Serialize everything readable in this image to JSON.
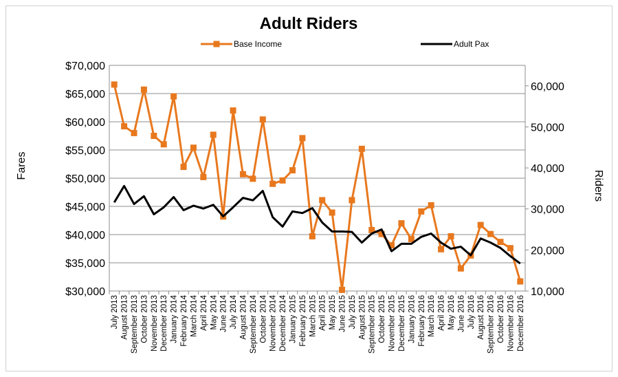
{
  "chart_data": {
    "type": "line",
    "title": "Adult Riders",
    "y_label": "Fares",
    "y2_label": "Riders",
    "categories": [
      "July 2013",
      "August 2013",
      "September 2013",
      "October 2013",
      "November 2013",
      "December 2013",
      "January 2014",
      "February 2014",
      "March 2014",
      "April 2014",
      "May 2014",
      "June 2014",
      "July 2014",
      "August 2014",
      "September 2014",
      "October 2014",
      "November 2014",
      "December 2014",
      "January 2015",
      "February 2015",
      "March 2015",
      "April 2015",
      "May 2015",
      "June 2015",
      "July 2015",
      "August 2015",
      "September 2015",
      "October 2015",
      "November 2015",
      "December 2015",
      "January 2016",
      "February 2016",
      "March 2016",
      "April 2016",
      "May 2016",
      "June 2016",
      "July 2016",
      "August 2016",
      "September 2016",
      "October 2016",
      "November 2016",
      "December 2016"
    ],
    "series": [
      {
        "name": "Base Income",
        "color": "#e8781e",
        "marker": "square",
        "axis": "y",
        "values": [
          66600,
          59200,
          58000,
          65700,
          57500,
          56000,
          64500,
          52000,
          55400,
          50200,
          57700,
          43200,
          62000,
          50700,
          49900,
          60400,
          49000,
          49600,
          51400,
          57100,
          39700,
          46100,
          43900,
          30200,
          46100,
          55200,
          40800,
          40100,
          38100,
          42000,
          39200,
          44100,
          45200,
          37400,
          39700,
          34000,
          36300,
          41700,
          40100,
          38700,
          37600,
          31700
        ]
      },
      {
        "name": "Adult Pax",
        "color": "#000000",
        "axis": "y2",
        "values": [
          31600,
          35600,
          31200,
          33100,
          28700,
          30400,
          32900,
          29700,
          30800,
          30100,
          31000,
          28200,
          30400,
          32700,
          32100,
          34400,
          28000,
          25700,
          29400,
          29000,
          30200,
          26700,
          24500,
          24500,
          24400,
          21800,
          24000,
          25000,
          19700,
          21500,
          21500,
          23200,
          24000,
          21800,
          20300,
          20800,
          18700,
          22800,
          21800,
          20500,
          18500,
          16700
        ]
      }
    ],
    "ylim": [
      30000,
      70000
    ],
    "yticks": [
      {
        "value": 30000,
        "label": "$30,000"
      },
      {
        "value": 35000,
        "label": "$35,000"
      },
      {
        "value": 40000,
        "label": "$40,000"
      },
      {
        "value": 45000,
        "label": "$45,000"
      },
      {
        "value": 50000,
        "label": "$50,000"
      },
      {
        "value": 55000,
        "label": "$55,000"
      },
      {
        "value": 60000,
        "label": "$60,000"
      },
      {
        "value": 65000,
        "label": "$65,000"
      },
      {
        "value": 70000,
        "label": "$70,000"
      }
    ],
    "y2lim": [
      10000,
      65000
    ],
    "y2ticks": [
      {
        "value": 10000,
        "label": "10,000"
      },
      {
        "value": 20000,
        "label": "20,000"
      },
      {
        "value": 30000,
        "label": "30,000"
      },
      {
        "value": 40000,
        "label": "40,000"
      },
      {
        "value": 50000,
        "label": "50,000"
      },
      {
        "value": 60000,
        "label": "60,000"
      }
    ],
    "grid": true,
    "legend": "top"
  }
}
